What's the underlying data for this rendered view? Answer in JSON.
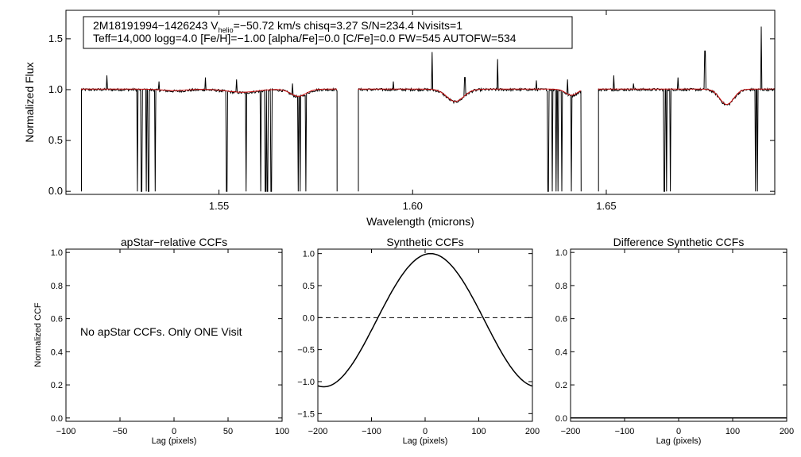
{
  "chart_data": [
    {
      "type": "line",
      "id": "spectrum",
      "header_line1_prefix": "2M18191994−1426243  V",
      "header_line1_sub": "helio",
      "header_line1_suffix": "=−50.72 km/s  chisq=3.27  S/N=234.4  Nvisits=1",
      "header_line2": "Teff=14,000 logg=4.0 [Fe/H]=−1.00 [alpha/Fe]=0.0 [C/Fe]=0.0 FW=545 AUTOFW=534",
      "xlabel": "Wavelength (microns)",
      "ylabel": "Normalized Flux",
      "xlim": [
        1.5105,
        1.6935
      ],
      "ylim": [
        -0.03,
        1.78
      ],
      "xticks": [
        {
          "v": 1.55,
          "label": "1.55"
        },
        {
          "v": 1.6,
          "label": "1.60"
        },
        {
          "v": 1.65,
          "label": "1.65"
        }
      ],
      "yticks": [
        {
          "v": 0.0,
          "label": "0.0"
        },
        {
          "v": 0.5,
          "label": "0.5"
        },
        {
          "v": 1.0,
          "label": "1.0"
        },
        {
          "v": 1.5,
          "label": "1.5"
        }
      ],
      "chips": [
        [
          1.5145,
          1.5805
        ],
        [
          1.586,
          1.6435
        ],
        [
          1.648,
          1.6935
        ]
      ],
      "absorption": [
        {
          "c": 1.5385,
          "w": 0.003,
          "d": 0.015
        },
        {
          "c": 1.556,
          "w": 0.004,
          "d": 0.03
        },
        {
          "c": 1.5705,
          "w": 0.002,
          "d": 0.07
        },
        {
          "c": 1.611,
          "w": 0.0022,
          "d": 0.12
        },
        {
          "c": 1.641,
          "w": 0.0015,
          "d": 0.06
        },
        {
          "c": 1.6811,
          "w": 0.0018,
          "d": 0.15
        }
      ],
      "emission_spikes": [
        {
          "x": 1.521,
          "h": 1.14
        },
        {
          "x": 1.5345,
          "h": 1.08
        },
        {
          "x": 1.5465,
          "h": 1.12
        },
        {
          "x": 1.5545,
          "h": 1.1
        },
        {
          "x": 1.5625,
          "h": 1.09
        },
        {
          "x": 1.569,
          "h": 1.06
        },
        {
          "x": 1.595,
          "h": 1.08
        },
        {
          "x": 1.605,
          "h": 1.37
        },
        {
          "x": 1.6135,
          "h": 1.12
        },
        {
          "x": 1.622,
          "h": 1.3
        },
        {
          "x": 1.632,
          "h": 1.09
        },
        {
          "x": 1.64,
          "h": 1.1
        },
        {
          "x": 1.652,
          "h": 1.14
        },
        {
          "x": 1.657,
          "h": 1.06
        },
        {
          "x": 1.6685,
          "h": 1.12
        },
        {
          "x": 1.6755,
          "h": 1.38
        },
        {
          "x": 1.69,
          "h": 1.62
        }
      ],
      "bad_pixel_drops": [
        1.529,
        1.53,
        1.5312,
        1.5318,
        1.5335,
        1.552,
        1.557,
        1.5608,
        1.562,
        1.5625,
        1.5635,
        1.5705,
        1.571,
        1.5725,
        1.635,
        1.636,
        1.637,
        1.6375,
        1.6385,
        1.641,
        1.665,
        1.6655,
        1.6665,
        1.6885,
        1.689
      ]
    },
    {
      "type": "line",
      "id": "apstar-ccf",
      "title": "apStar−relative CCFs",
      "annotation": "No apStar CCFs.  Only ONE Visit",
      "xlabel": "Lag (pixels)",
      "ylabel": "Normalized CCF",
      "xlim": [
        -100,
        100
      ],
      "ylim": [
        -0.02,
        1.02
      ],
      "xticks": [
        {
          "v": -100,
          "label": "−100"
        },
        {
          "v": -50,
          "label": "−50"
        },
        {
          "v": 0,
          "label": "0"
        },
        {
          "v": 50,
          "label": "50"
        },
        {
          "v": 100,
          "label": "100"
        }
      ],
      "yticks": [
        {
          "v": 0.0,
          "label": "0.0"
        },
        {
          "v": 0.2,
          "label": "0.2"
        },
        {
          "v": 0.4,
          "label": "0.4"
        },
        {
          "v": 0.6,
          "label": "0.6"
        },
        {
          "v": 0.8,
          "label": "0.8"
        },
        {
          "v": 1.0,
          "label": "1.0"
        }
      ]
    },
    {
      "type": "line",
      "id": "synthetic-ccf",
      "title": "Synthetic CCFs",
      "xlabel": "Lag (pixels)",
      "xlim": [
        -200,
        200
      ],
      "ylim": [
        -1.62,
        1.07
      ],
      "peak_lag": 10,
      "zero_crossing_halfwidth": 98,
      "xticks": [
        {
          "v": -200,
          "label": "−200"
        },
        {
          "v": -100,
          "label": "−100"
        },
        {
          "v": 0,
          "label": "0"
        },
        {
          "v": 100,
          "label": "100"
        },
        {
          "v": 200,
          "label": "200"
        }
      ],
      "yticks": [
        {
          "v": -1.5,
          "label": "−1.5"
        },
        {
          "v": -1.0,
          "label": "−1.0"
        },
        {
          "v": -0.5,
          "label": "−0.5"
        },
        {
          "v": 0.0,
          "label": "0.0"
        },
        {
          "v": 0.5,
          "label": "0.5"
        },
        {
          "v": 1.0,
          "label": "1.0"
        }
      ]
    },
    {
      "type": "line",
      "id": "difference-ccf",
      "title": "Difference Synthetic CCFs",
      "xlabel": "Lag (pixels)",
      "xlim": [
        -200,
        200
      ],
      "ylim": [
        -0.02,
        1.02
      ],
      "flat_value": 0.0,
      "xticks": [
        {
          "v": -200,
          "label": "−200"
        },
        {
          "v": -100,
          "label": "−100"
        },
        {
          "v": 0,
          "label": "0"
        },
        {
          "v": 100,
          "label": "100"
        },
        {
          "v": 200,
          "label": "200"
        }
      ],
      "yticks": [
        {
          "v": 0.0,
          "label": "0.0"
        },
        {
          "v": 0.2,
          "label": "0.2"
        },
        {
          "v": 0.4,
          "label": "0.4"
        },
        {
          "v": 0.6,
          "label": "0.6"
        },
        {
          "v": 0.8,
          "label": "0.8"
        },
        {
          "v": 1.0,
          "label": "1.0"
        }
      ]
    }
  ]
}
